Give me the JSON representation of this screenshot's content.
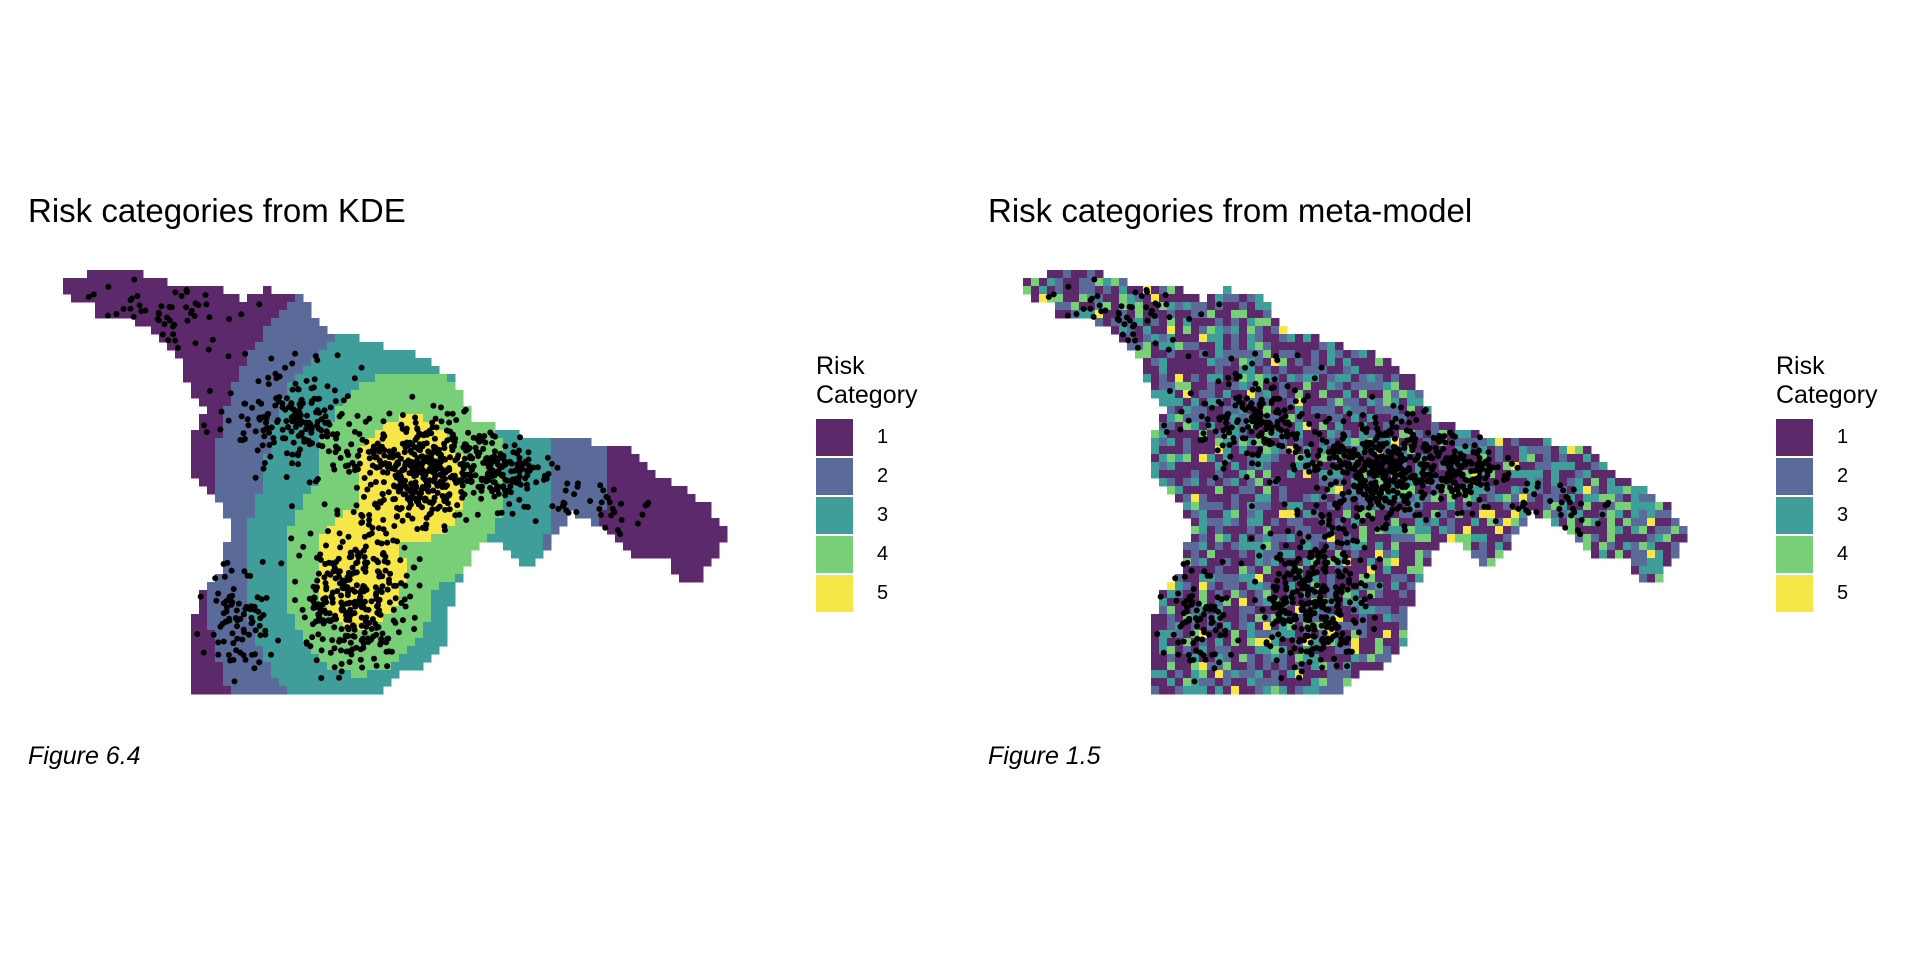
{
  "panels": [
    {
      "title": "Risk categories from KDE",
      "caption": "Figure 6.4",
      "legend": {
        "title_line1": "Risk",
        "title_line2": "Category",
        "items": [
          {
            "label": "1",
            "color": "#5c2a6b"
          },
          {
            "label": "2",
            "color": "#5a6b9a"
          },
          {
            "label": "3",
            "color": "#3f9e99"
          },
          {
            "label": "4",
            "color": "#78cf78"
          },
          {
            "label": "5",
            "color": "#f6e648"
          }
        ]
      }
    },
    {
      "title": "Risk categories from meta-model",
      "caption": "Figure 1.5",
      "legend": {
        "title_line1": "Risk",
        "title_line2": "Category",
        "items": [
          {
            "label": "1",
            "color": "#5c2a6b"
          },
          {
            "label": "2",
            "color": "#5a6b9a"
          },
          {
            "label": "3",
            "color": "#3f9e99"
          },
          {
            "label": "4",
            "color": "#78cf78"
          },
          {
            "label": "5",
            "color": "#f6e648"
          }
        ]
      }
    }
  ]
}
